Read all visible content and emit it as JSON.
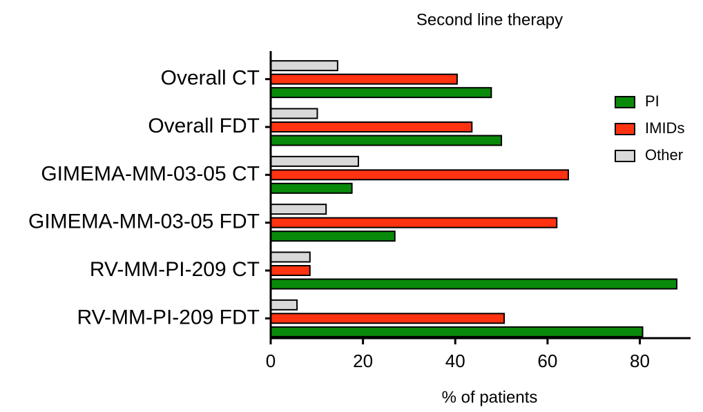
{
  "chart_data": {
    "type": "hbar",
    "title": "Second line therapy",
    "x_label": "% of patients",
    "categories": [
      "Overall CT",
      "Overall FDT",
      "GIMEMA-MM-03-05 CT",
      "GIMEMA-MM-03-05 FDT",
      "RV-MM-PI-209 CT",
      "RV-MM-PI-209 FDT"
    ],
    "series": [
      {
        "name": "PI",
        "color": "#0a8a0a",
        "values": [
          47.8,
          50,
          17.6,
          26.9,
          88,
          80.6
        ]
      },
      {
        "name": "IMIDs",
        "color": "#ff3311",
        "values": [
          40.4,
          43.6,
          64.5,
          62,
          8.5,
          50.6
        ]
      },
      {
        "name": "Other",
        "color": "#d9d9d9",
        "values": [
          14.5,
          10.1,
          19,
          12,
          8.5,
          5.7
        ]
      }
    ],
    "xlim": [
      0,
      91
    ],
    "xticks": [
      0,
      20,
      40,
      60,
      80
    ],
    "legend": "right"
  }
}
